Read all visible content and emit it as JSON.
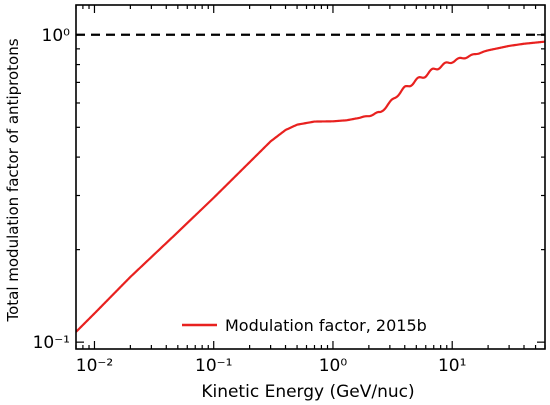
{
  "chart_data": {
    "type": "line",
    "xscale": "log",
    "yscale": "log",
    "xlabel": "Kinetic Energy (GeV/nuc)",
    "ylabel": "Total modulation factor of antiprotons",
    "xlim": [
      0.007,
      60
    ],
    "ylim": [
      0.095,
      1.25
    ],
    "x_ticks": [
      {
        "value": 0.01,
        "label": "10⁻²"
      },
      {
        "value": 0.1,
        "label": "10⁻¹"
      },
      {
        "value": 1,
        "label": "10⁰"
      },
      {
        "value": 10,
        "label": "10¹"
      }
    ],
    "y_ticks": [
      {
        "value": 0.1,
        "label": "10⁻¹"
      },
      {
        "value": 1,
        "label": "10⁰"
      }
    ],
    "grid": false,
    "legend_position": "bottom-center",
    "reference_line": {
      "y": 1.0,
      "style": "dashed",
      "color": "#000000"
    },
    "series": [
      {
        "name": "Modulation factor, 2015b",
        "color": "#e8211f",
        "x": [
          0.007,
          0.01,
          0.02,
          0.05,
          0.1,
          0.2,
          0.3,
          0.4,
          0.5,
          0.7,
          1.0,
          1.3,
          1.6,
          2.0,
          2.5,
          3.0,
          3.5,
          4.0,
          5.0,
          6.0,
          7.0,
          8.0,
          10.0,
          15.0,
          20.0,
          30.0,
          40.0,
          60.0
        ],
        "y": [
          0.108,
          0.124,
          0.163,
          0.228,
          0.295,
          0.385,
          0.45,
          0.49,
          0.51,
          0.522,
          0.523,
          0.527,
          0.535,
          0.545,
          0.56,
          0.6,
          0.64,
          0.67,
          0.71,
          0.74,
          0.77,
          0.79,
          0.82,
          0.86,
          0.89,
          0.92,
          0.935,
          0.95
        ]
      }
    ]
  }
}
